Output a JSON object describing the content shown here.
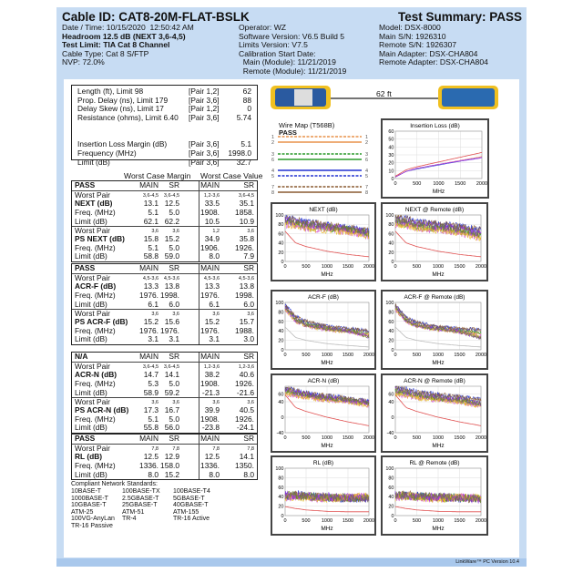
{
  "header": {
    "cable_id": "Cable ID: CAT8-20M-FLAT-BSLK",
    "summary": "Test Summary: PASS",
    "col1": [
      "Date / Time: 10/15/2020  12:50:42 AM",
      "Headroom 12.5 dB (NEXT 3,6-4,5)",
      "Test Limit: TIA Cat 8 Channel",
      "Cable Type: Cat 8 S/FTP",
      "NVP: 72.0%"
    ],
    "col2": [
      "Operator: WZ",
      "Software Version: V6.5 Build 5",
      "Limits Version: V7.5",
      "Calibration Start Date:",
      "  Main (Module): 11/21/2019",
      "  Remote (Module): 11/21/2019"
    ],
    "col3": [
      "Model: DSX-8000",
      "Main S/N: 1926310",
      "Remote S/N: 1926307",
      "Main Adapter: DSX-CHA804",
      "Remote Adapter: DSX-CHA804"
    ]
  },
  "summary_box": [
    {
      "label": "Length (ft), Limit 98",
      "pair": "[Pair 1,2]",
      "value": "62"
    },
    {
      "label": "Prop. Delay (ns), Limit 179",
      "pair": "[Pair 3,6]",
      "value": "88"
    },
    {
      "label": "Delay Skew (ns), Limit 17",
      "pair": "[Pair 1,2]",
      "value": "0"
    },
    {
      "label": "Resistance (ohms), Limit 6.40",
      "pair": "[Pair 3,6]",
      "value": "5.74"
    },
    {
      "label": "",
      "pair": "",
      "value": ""
    },
    {
      "label": "",
      "pair": "",
      "value": ""
    },
    {
      "label": "Insertion Loss Margin (dB)",
      "pair": "[Pair 3,6]",
      "value": "5.1"
    },
    {
      "label": "Frequency (MHz)",
      "pair": "[Pair 3,6]",
      "value": "1998.0"
    },
    {
      "label": "Limit (dB)",
      "pair": "[Pair 3,6]",
      "value": "32.7"
    }
  ],
  "worst_case_margin": "Worst Case Margin",
  "worst_case_value": "Worst Case Value",
  "sections": [
    {
      "status": "PASS",
      "cols": [
        "MAIN",
        "SR",
        "MAIN",
        "SR"
      ],
      "groups": [
        [
          [
            "Worst Pair",
            "3,6-4,5",
            "3,6-4,5",
            "1,2-3,6",
            "3,6-4,5"
          ],
          [
            "NEXT (dB)",
            "13.1",
            "12.5",
            "33.5",
            "35.1"
          ],
          [
            "Freq. (MHz)",
            "5.1",
            "5.0",
            "1908.",
            "1858."
          ],
          [
            "Limit (dB)",
            "62.1",
            "62.2",
            "10.5",
            "10.9"
          ]
        ],
        [
          [
            "Worst Pair",
            "3,6",
            "3,6",
            "1,2",
            "3,6"
          ],
          [
            "PS NEXT (dB)",
            "15.8",
            "15.2",
            "34.9",
            "35.8"
          ],
          [
            "Freq. (MHz)",
            "5.1",
            "5.0",
            "1906.",
            "1926."
          ],
          [
            "Limit (dB)",
            "58.8",
            "59.0",
            "8.0",
            "7.9"
          ]
        ]
      ]
    },
    {
      "status": "PASS",
      "cols": [
        "MAIN",
        "SR",
        "MAIN",
        "SR"
      ],
      "groups": [
        [
          [
            "Worst Pair",
            "4,5-3,6",
            "4,5-3,6",
            "4,5-3,6",
            "4,5-3,6"
          ],
          [
            "ACR-F (dB)",
            "13.3",
            "13.8",
            "13.3",
            "13.8"
          ],
          [
            "Freq. (MHz)",
            "1976.",
            "1998.",
            "1976.",
            "1998."
          ],
          [
            "Limit (dB)",
            "6.1",
            "6.0",
            "6.1",
            "6.0"
          ]
        ],
        [
          [
            "Worst Pair",
            "3,6",
            "3,6",
            "3,6",
            "3,6"
          ],
          [
            "PS ACR-F (dB)",
            "15.2",
            "15.6",
            "15.2",
            "15.7"
          ],
          [
            "Freq. (MHz)",
            "1976.",
            "1976.",
            "1976.",
            "1988."
          ],
          [
            "Limit (dB)",
            "3.1",
            "3.1",
            "3.1",
            "3.0"
          ]
        ]
      ]
    },
    {
      "status": "N/A",
      "cols": [
        "MAIN",
        "SR",
        "MAIN",
        "SR"
      ],
      "groups": [
        [
          [
            "Worst Pair",
            "3,6-4,5",
            "3,6-4,5",
            "1,2-3,6",
            "1,2-3,6"
          ],
          [
            "ACR-N (dB)",
            "14.7",
            "14.1",
            "38.2",
            "40.6"
          ],
          [
            "Freq. (MHz)",
            "5.3",
            "5.0",
            "1908.",
            "1926."
          ],
          [
            "Limit (dB)",
            "58.9",
            "59.2",
            "-21.3",
            "-21.6"
          ]
        ],
        [
          [
            "Worst Pair",
            "3,6",
            "3,6",
            "3,6",
            "3,6"
          ],
          [
            "PS ACR-N (dB)",
            "17.3",
            "16.7",
            "39.9",
            "40.5"
          ],
          [
            "Freq. (MHz)",
            "5.1",
            "5.0",
            "1908.",
            "1926."
          ],
          [
            "Limit (dB)",
            "55.8",
            "56.0",
            "-23.8",
            "-24.1"
          ]
        ]
      ]
    },
    {
      "status": "PASS",
      "cols": [
        "MAIN",
        "SR",
        "MAIN",
        "SR"
      ],
      "groups": [
        [
          [
            "Worst Pair",
            "7,8",
            "7,8",
            "7,8",
            "7,8"
          ],
          [
            "RL (dB)",
            "12.5",
            "12.9",
            "12.5",
            "14.1"
          ],
          [
            "Freq. (MHz)",
            "1336.",
            "158.0",
            "1336.",
            "1350."
          ],
          [
            "Limit (dB)",
            "8.0",
            "15.2",
            "8.0",
            "8.0"
          ]
        ]
      ]
    }
  ],
  "standards": {
    "title": "Compliant Network Standards:",
    "items": [
      "10BASE-T",
      "100BASE-TX",
      "100BASE-T4",
      "1000BASE-T",
      "2.5GBASE-T",
      "5GBASE-T",
      "10GBASE-T",
      "25GBASE-T",
      "40GBASE-T",
      "ATM-25",
      "ATM-51",
      "ATM-155",
      "100VG-AnyLan",
      "TR-4",
      "TR-16 Active",
      "TR-16 Passive"
    ]
  },
  "length_label": "62 ft",
  "wire_map": {
    "title": "Wire Map (T568B)",
    "status": "PASS",
    "pins": [
      "1",
      "2",
      "3",
      "6",
      "4",
      "5",
      "7",
      "8"
    ],
    "colors": [
      "#e8924a",
      "#e8924a",
      "#2a9a2a",
      "#2a9a2a",
      "#2030d0",
      "#2030d0",
      "#8a5a30",
      "#8a5a30"
    ],
    "dashed": [
      true,
      false,
      true,
      false,
      false,
      true,
      true,
      false
    ]
  },
  "pair_colors": [
    "#e8924a",
    "#2a9a2a",
    "#2030d0",
    "#8a5a30",
    "#d050d0",
    "#e8c020",
    "#8a2be2",
    "#708030"
  ],
  "limit_color": "#e05050",
  "chart_data": [
    {
      "type": "line",
      "title": "Insertion Loss (dB)",
      "xlabel": "MHz",
      "xlim": [
        0,
        2000
      ],
      "ylim": [
        0,
        60
      ],
      "yticks": [
        0,
        10,
        20,
        30,
        40,
        50,
        60
      ],
      "xticks": [
        0,
        500,
        1000,
        1500,
        2000
      ],
      "x": [
        0,
        250,
        500,
        1000,
        1500,
        2000
      ],
      "limit": [
        3,
        11,
        15,
        21,
        27,
        33
      ],
      "series": [
        [
          2,
          9,
          13,
          18,
          23,
          28
        ],
        [
          2,
          9,
          12,
          17,
          22,
          27
        ],
        [
          2,
          9,
          13,
          18,
          23,
          27
        ],
        [
          2,
          9,
          13,
          18,
          22,
          26
        ]
      ],
      "noise": 0
    },
    {
      "type": "line",
      "title": "NEXT (dB)",
      "xlabel": "MHz",
      "xlim": [
        0,
        2000
      ],
      "ylim": [
        0,
        100
      ],
      "yticks": [
        0,
        20,
        40,
        60,
        80,
        100
      ],
      "xticks": [
        0,
        500,
        1000,
        1500,
        2000
      ],
      "x": [
        0,
        250,
        500,
        1000,
        1500,
        2000
      ],
      "limit": [
        65,
        40,
        32,
        22,
        15,
        10
      ],
      "series": [
        [
          85,
          80,
          75,
          72,
          68,
          60
        ],
        [
          95,
          90,
          85,
          78,
          72,
          65
        ],
        [
          80,
          76,
          72,
          68,
          64,
          55
        ],
        [
          90,
          85,
          80,
          75,
          70,
          60
        ]
      ],
      "noise": 8
    },
    {
      "type": "line",
      "title": "NEXT @ Remote (dB)",
      "xlabel": "MHz",
      "xlim": [
        0,
        2000
      ],
      "ylim": [
        0,
        100
      ],
      "yticks": [
        0,
        20,
        40,
        60,
        80,
        100
      ],
      "xticks": [
        0,
        500,
        1000,
        1500,
        2000
      ],
      "x": [
        0,
        250,
        500,
        1000,
        1500,
        2000
      ],
      "limit": [
        65,
        40,
        32,
        22,
        15,
        10
      ],
      "series": [
        [
          85,
          80,
          75,
          70,
          65,
          55
        ],
        [
          95,
          92,
          85,
          80,
          75,
          68
        ],
        [
          80,
          76,
          72,
          68,
          62,
          50
        ],
        [
          90,
          85,
          80,
          75,
          70,
          58
        ]
      ],
      "noise": 8
    },
    {
      "type": "line",
      "title": "ACR-F (dB)",
      "xlabel": "MHz",
      "xlim": [
        0,
        2000
      ],
      "ylim": [
        0,
        100
      ],
      "yticks": [
        0,
        20,
        40,
        60,
        80,
        100
      ],
      "xticks": [
        0,
        500,
        1000,
        1500,
        2000
      ],
      "x": [
        0,
        250,
        500,
        1000,
        1500,
        2000
      ],
      "limit": [
        48,
        26,
        20,
        13,
        9,
        6
      ],
      "series": [
        [
          90,
          65,
          55,
          45,
          40,
          35
        ],
        [
          95,
          70,
          60,
          50,
          45,
          40
        ],
        [
          85,
          60,
          50,
          42,
          38,
          30
        ],
        [
          90,
          62,
          52,
          44,
          40,
          28
        ]
      ],
      "noise": 4
    },
    {
      "type": "line",
      "title": "ACR-F @ Remote (dB)",
      "xlabel": "MHz",
      "xlim": [
        0,
        2000
      ],
      "ylim": [
        0,
        100
      ],
      "yticks": [
        0,
        20,
        40,
        60,
        80,
        100
      ],
      "xticks": [
        0,
        500,
        1000,
        1500,
        2000
      ],
      "x": [
        0,
        250,
        500,
        1000,
        1500,
        2000
      ],
      "limit": [
        48,
        26,
        20,
        13,
        9,
        6
      ],
      "series": [
        [
          90,
          62,
          52,
          45,
          40,
          35
        ],
        [
          95,
          68,
          58,
          48,
          45,
          42
        ],
        [
          85,
          60,
          50,
          42,
          38,
          28
        ],
        [
          90,
          62,
          50,
          44,
          38,
          25
        ]
      ],
      "noise": 4
    },
    {
      "type": "line",
      "title": "ACR-N (dB)",
      "xlabel": "MHz",
      "xlim": [
        0,
        2000
      ],
      "ylim": [
        -40,
        80
      ],
      "yticks": [
        -40,
        0,
        40,
        60
      ],
      "xticks": [
        0,
        500,
        1000,
        1500,
        2000
      ],
      "x": [
        0,
        250,
        500,
        1000,
        1500,
        2000
      ],
      "limit": [
        58,
        25,
        15,
        0,
        -12,
        -22
      ],
      "series": [
        [
          65,
          60,
          55,
          48,
          42,
          35
        ],
        [
          75,
          70,
          62,
          55,
          48,
          40
        ],
        [
          60,
          56,
          50,
          45,
          40,
          30
        ],
        [
          70,
          64,
          58,
          50,
          44,
          38
        ]
      ],
      "noise": 7
    },
    {
      "type": "line",
      "title": "ACR-N @ Remote (dB)",
      "xlabel": "MHz",
      "xlim": [
        0,
        2000
      ],
      "ylim": [
        -40,
        80
      ],
      "yticks": [
        -40,
        0,
        40,
        60
      ],
      "xticks": [
        0,
        500,
        1000,
        1500,
        2000
      ],
      "x": [
        0,
        250,
        500,
        1000,
        1500,
        2000
      ],
      "limit": [
        58,
        25,
        15,
        0,
        -12,
        -22
      ],
      "series": [
        [
          65,
          60,
          55,
          48,
          42,
          35
        ],
        [
          78,
          72,
          65,
          58,
          52,
          45
        ],
        [
          60,
          55,
          50,
          45,
          40,
          28
        ],
        [
          70,
          64,
          58,
          50,
          44,
          35
        ]
      ],
      "noise": 7
    },
    {
      "type": "line",
      "title": "RL (dB)",
      "xlabel": "MHz",
      "xlim": [
        0,
        2000
      ],
      "ylim": [
        0,
        100
      ],
      "yticks": [
        0,
        20,
        40,
        60,
        80,
        100
      ],
      "xticks": [
        0,
        500,
        1000,
        1500,
        2000
      ],
      "x": [
        0,
        250,
        500,
        1000,
        1500,
        2000
      ],
      "limit": [
        19,
        15,
        12,
        9,
        8,
        8
      ],
      "series": [
        [
          42,
          42,
          40,
          38,
          38,
          38
        ],
        [
          40,
          45,
          42,
          38,
          36,
          36
        ],
        [
          38,
          40,
          38,
          36,
          38,
          40
        ],
        [
          44,
          42,
          40,
          40,
          38,
          36
        ]
      ],
      "noise": 9
    },
    {
      "type": "line",
      "title": "RL @ Remote (dB)",
      "xlabel": "MHz",
      "xlim": [
        0,
        2000
      ],
      "ylim": [
        0,
        100
      ],
      "yticks": [
        0,
        20,
        40,
        60,
        80,
        100
      ],
      "xticks": [
        0,
        500,
        1000,
        1500,
        2000
      ],
      "x": [
        0,
        250,
        500,
        1000,
        1500,
        2000
      ],
      "limit": [
        19,
        15,
        12,
        9,
        8,
        8
      ],
      "series": [
        [
          42,
          42,
          40,
          38,
          38,
          36
        ],
        [
          40,
          45,
          42,
          38,
          36,
          36
        ],
        [
          38,
          40,
          38,
          36,
          38,
          38
        ],
        [
          44,
          42,
          40,
          40,
          38,
          34
        ]
      ],
      "noise": 9
    }
  ],
  "footer": "LinkWare™ PC Version 10.4"
}
